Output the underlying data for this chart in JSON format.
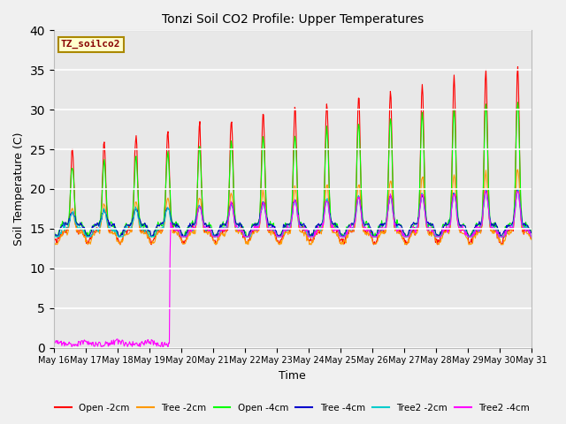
{
  "title": "Tonzi Soil CO2 Profile: Upper Temperatures",
  "xlabel": "Time",
  "ylabel": "Soil Temperature (C)",
  "ylim": [
    0,
    40
  ],
  "yticks": [
    0,
    5,
    10,
    15,
    20,
    25,
    30,
    35,
    40
  ],
  "bg_color": "#e8e8e8",
  "annotation_text": "TZ_soilco2",
  "annotation_color": "#880000",
  "annotation_bg": "#ffffcc",
  "annotation_edge": "#aa8800",
  "legend": [
    {
      "label": "Open -2cm",
      "color": "#ff0000"
    },
    {
      "label": "Tree -2cm",
      "color": "#ff9900"
    },
    {
      "label": "Open -4cm",
      "color": "#00ff00"
    },
    {
      "label": "Tree -4cm",
      "color": "#0000cc"
    },
    {
      "label": "Tree2 -2cm",
      "color": "#00cccc"
    },
    {
      "label": "Tree2 -4cm",
      "color": "#ff00ff"
    }
  ],
  "n_days": 15,
  "start_day": 16,
  "ppd": 48,
  "jump_day": 3.65,
  "seed": 42
}
